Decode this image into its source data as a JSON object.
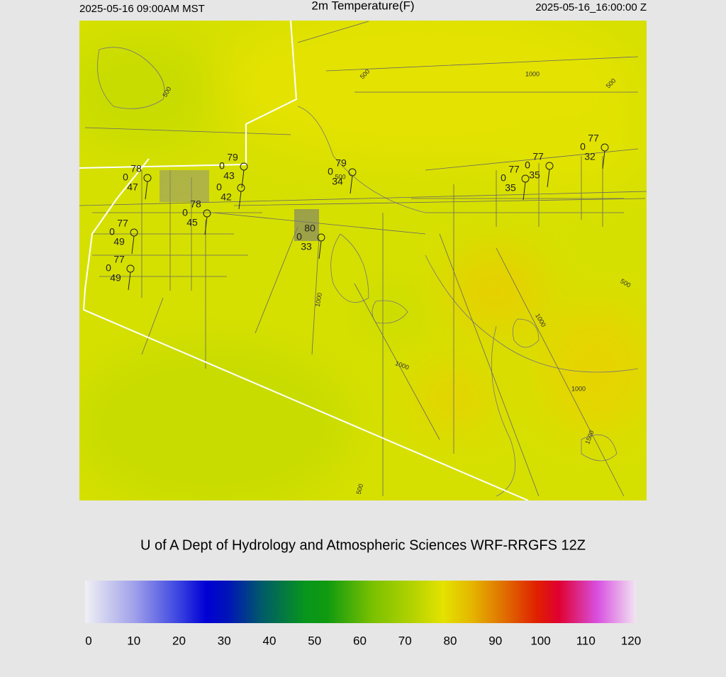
{
  "header": {
    "left": "2025-05-16 09:00AM MST",
    "title": "2m Temperature(F)",
    "right": "2025-05-16_16:00:00 Z"
  },
  "stations": [
    {
      "temperature": 78,
      "wind": 0,
      "dewpoint": 47
    },
    {
      "temperature": 79,
      "wind": 0,
      "dewpoint": 43
    },
    {
      "wind": 0,
      "dewpoint": 42
    },
    {
      "temperature": 78,
      "wind": 0,
      "dewpoint": 45
    },
    {
      "temperature": 77,
      "wind": 0,
      "dewpoint": 49
    },
    {
      "temperature": 77,
      "wind": 0,
      "dewpoint": 49
    },
    {
      "temperature": 79,
      "wind": 0,
      "dewpoint": 34
    },
    {
      "temperature": 80,
      "wind": 0,
      "dewpoint": 33
    },
    {
      "temperature": 77,
      "wind": 0,
      "dewpoint": 35
    },
    {
      "temperature": 77,
      "wind": 0,
      "dewpoint": 35
    },
    {
      "temperature": 77,
      "wind": 0,
      "dewpoint": 32
    }
  ],
  "contour_labels": [
    500,
    500,
    1000,
    500,
    500,
    1000,
    1000,
    500,
    1000,
    1000,
    1500,
    500
  ],
  "credit": "U of A Dept of Hydrology and Atmospheric Sciences WRF-RRGFS 12Z",
  "colorbar": {
    "range": [
      0,
      120
    ],
    "ticks": [
      0,
      10,
      20,
      30,
      40,
      50,
      60,
      70,
      80,
      90,
      100,
      110,
      120
    ]
  }
}
